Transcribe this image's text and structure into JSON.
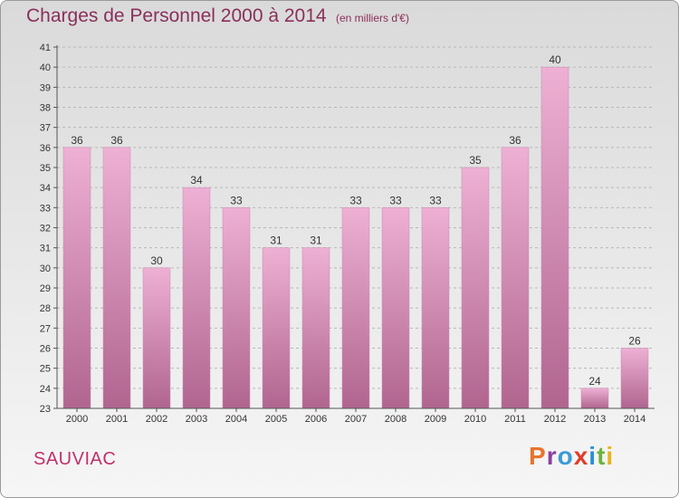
{
  "header": {
    "title": "Charges de Personnel 2000 à 2014",
    "subtitle": "(en milliers d'€)"
  },
  "footer": {
    "commune": "SAUVIAC",
    "logo_text": "Proxiti",
    "logo_colors": [
      "#e9732b",
      "#8a3fa0",
      "#3c9ad6",
      "#e23b2a",
      "#2b8fd3",
      "#6cb33f",
      "#e9b21f"
    ]
  },
  "colors": {
    "bar_top": "#eeb0d4",
    "bar_bottom": "#b0658f",
    "title": "#8a2f5a",
    "commune": "#c0306a"
  },
  "chart_data": {
    "type": "bar",
    "title": "Charges de Personnel 2000 à 2014",
    "subtitle": "(en milliers d'€)",
    "categories": [
      "2000",
      "2001",
      "2002",
      "2003",
      "2004",
      "2005",
      "2006",
      "2007",
      "2008",
      "2009",
      "2010",
      "2011",
      "2012",
      "2013",
      "2014"
    ],
    "values": [
      36,
      36,
      30,
      34,
      33,
      31,
      31,
      33,
      33,
      33,
      35,
      36,
      40,
      24,
      26
    ],
    "ylim": [
      23,
      41
    ],
    "yticks": [
      23,
      24,
      25,
      26,
      27,
      28,
      29,
      30,
      31,
      32,
      33,
      34,
      35,
      36,
      37,
      38,
      39,
      40,
      41
    ],
    "grid": true,
    "legend": "none"
  }
}
